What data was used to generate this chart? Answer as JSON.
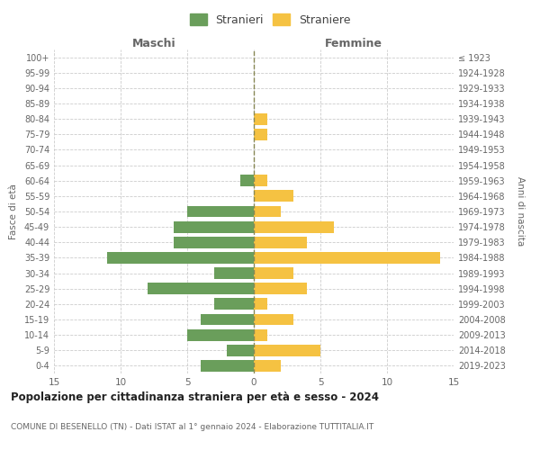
{
  "age_groups": [
    "100+",
    "95-99",
    "90-94",
    "85-89",
    "80-84",
    "75-79",
    "70-74",
    "65-69",
    "60-64",
    "55-59",
    "50-54",
    "45-49",
    "40-44",
    "35-39",
    "30-34",
    "25-29",
    "20-24",
    "15-19",
    "10-14",
    "5-9",
    "0-4"
  ],
  "birth_years": [
    "≤ 1923",
    "1924-1928",
    "1929-1933",
    "1934-1938",
    "1939-1943",
    "1944-1948",
    "1949-1953",
    "1954-1958",
    "1959-1963",
    "1964-1968",
    "1969-1973",
    "1974-1978",
    "1979-1983",
    "1984-1988",
    "1989-1993",
    "1994-1998",
    "1999-2003",
    "2004-2008",
    "2009-2013",
    "2014-2018",
    "2019-2023"
  ],
  "maschi": [
    0,
    0,
    0,
    0,
    0,
    0,
    0,
    0,
    1,
    0,
    5,
    6,
    6,
    11,
    3,
    8,
    3,
    4,
    5,
    2,
    4
  ],
  "femmine": [
    0,
    0,
    0,
    0,
    1,
    1,
    0,
    0,
    1,
    3,
    2,
    6,
    4,
    14,
    3,
    4,
    1,
    3,
    1,
    5,
    2
  ],
  "maschi_color": "#6a9e5b",
  "femmine_color": "#f5c242",
  "title": "Popolazione per cittadinanza straniera per età e sesso - 2024",
  "subtitle": "COMUNE DI BESENELLO (TN) - Dati ISTAT al 1° gennaio 2024 - Elaborazione TUTTITALIA.IT",
  "ylabel_left": "Fasce di età",
  "ylabel_right": "Anni di nascita",
  "header_left": "Maschi",
  "header_right": "Femmine",
  "legend_stranieri": "Stranieri",
  "legend_straniere": "Straniere",
  "xlim": 15,
  "background_color": "#ffffff",
  "grid_color": "#cccccc",
  "center_line_color": "#888855"
}
